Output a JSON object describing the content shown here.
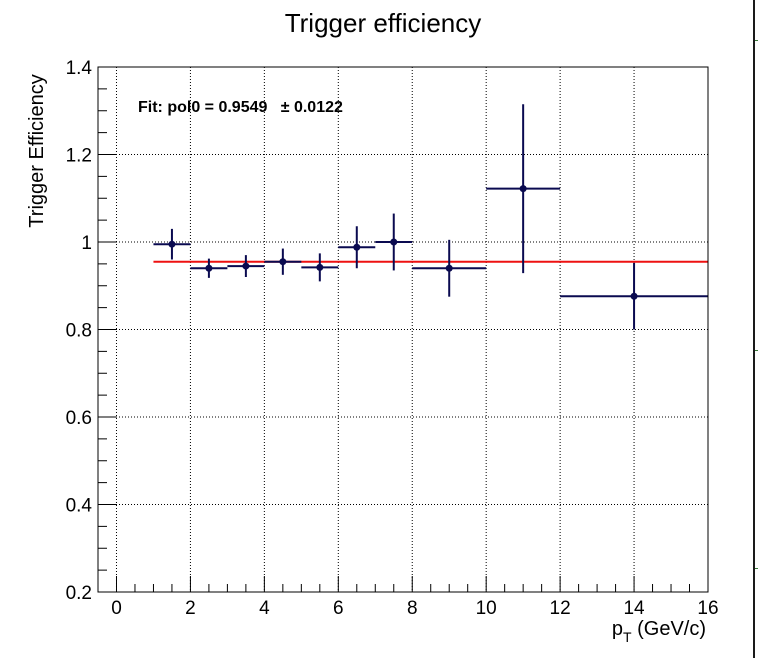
{
  "chart_data": {
    "type": "scatter",
    "title": "Trigger efficiency",
    "xlabel_main": "p",
    "xlabel_sub": "T",
    "xlabel_rest": " (GeV/c)",
    "ylabel": "Trigger Efficiency",
    "xlim": [
      -0.5,
      16
    ],
    "ylim": [
      0.2,
      1.4
    ],
    "x_ticks": [
      0,
      2,
      4,
      6,
      8,
      10,
      12,
      14,
      16
    ],
    "x_tick_labels": [
      "0",
      "2",
      "4",
      "6",
      "8",
      "10",
      "12",
      "14",
      "16"
    ],
    "y_ticks": [
      0.2,
      0.4,
      0.6,
      0.8,
      1.0,
      1.2,
      1.4
    ],
    "y_tick_labels": [
      "0.2",
      "0.4",
      "0.6",
      "0.8",
      "1",
      "1.2",
      "1.4"
    ],
    "grid": true,
    "fit_label": "Fit: pol0 = 0.9549   ± 0.0122",
    "fit": {
      "type": "pol0",
      "value": 0.9549,
      "error": 0.0122,
      "x_range": [
        1,
        16
      ],
      "color": "#ee1111"
    },
    "series": [
      {
        "color": "#0a0a50",
        "points": [
          {
            "x": 1.5,
            "xerr": 0.5,
            "y": 0.995,
            "yerr": 0.035
          },
          {
            "x": 2.5,
            "xerr": 0.5,
            "y": 0.94,
            "yerr": 0.022
          },
          {
            "x": 3.5,
            "xerr": 0.5,
            "y": 0.945,
            "yerr": 0.025
          },
          {
            "x": 4.5,
            "xerr": 0.5,
            "y": 0.955,
            "yerr": 0.03
          },
          {
            "x": 5.5,
            "xerr": 0.5,
            "y": 0.942,
            "yerr": 0.032
          },
          {
            "x": 6.5,
            "xerr": 0.5,
            "y": 0.988,
            "yerr": 0.048
          },
          {
            "x": 7.5,
            "xerr": 0.5,
            "y": 1.0,
            "yerr": 0.065
          },
          {
            "x": 9.0,
            "xerr": 1.0,
            "y": 0.94,
            "yerr": 0.065
          },
          {
            "x": 11.0,
            "xerr": 1.0,
            "y": 1.122,
            "yerr": 0.193
          },
          {
            "x": 14.0,
            "xerr": 2.0,
            "y": 0.876,
            "yerr": 0.076
          }
        ]
      }
    ]
  }
}
